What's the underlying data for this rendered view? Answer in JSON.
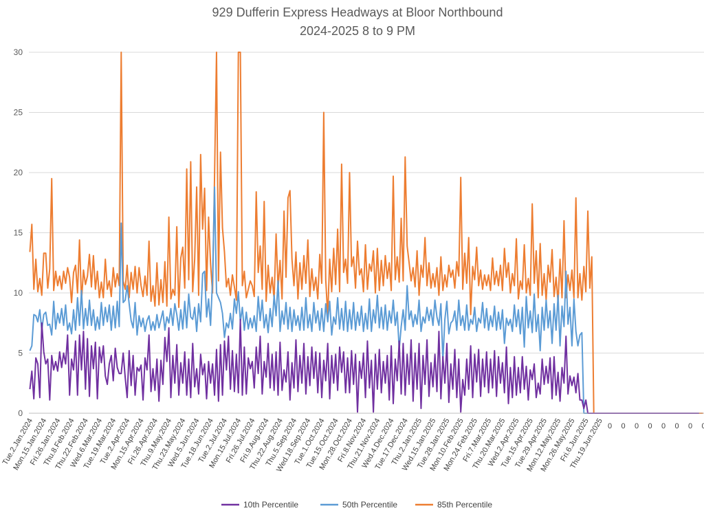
{
  "chart_data": {
    "type": "line",
    "title_line1": "929 Dufferin Express Headways at Bloor Northbound",
    "title_line2": "2024-2025 8 to 9 PM",
    "ylim": [
      0,
      30
    ],
    "y_ticks": [
      0,
      5,
      10,
      15,
      20,
      25,
      30
    ],
    "grid": "horizontal",
    "legend_position": "bottom",
    "date_tick_labels": [
      "Tue.2.Jan.2024",
      "Mon.15.Jan.2024",
      "Fri.26.Jan.2024",
      "Thu.8.Feb.2024",
      "Thu.22.Feb.2024",
      "Wed.6.Mar.2024",
      "Tue.19.Mar.2024",
      "Tue.2.Apr.2024",
      "Mon.15.Apr.2024",
      "Fri.26.Apr.2024",
      "Thu.9.May.2024",
      "Thu.23.May.2024",
      "Wed.5.Jun.2024",
      "Tue.18.Jun.2024",
      "Tue.2.Jul.2024",
      "Mon.15.Jul.2024",
      "Fri.26.Jul.2024",
      "Fri.9.Aug.2024",
      "Thu.22.Aug.2024",
      "Thu.5.Sep.2024",
      "Wed.18.Sep.2024",
      "Tue.1.Oct.2024",
      "Tue.15.Oct.2024",
      "Mon.28.Oct.2024",
      "Fri.8.Nov.2024",
      "Thu.21.Nov.2024",
      "Wed.4.Dec.2024",
      "Tue.17.Dec.2024",
      "Thu.2.Jan.2025",
      "Wed.15.Jan.2025",
      "Tue.28.Jan.2025",
      "Mon.10.Feb.2025",
      "Mon.24.Feb.2025",
      "Fri.7.Mar.2025",
      "Thu.20.Mar.2025",
      "Wed.2.Apr.2025",
      "Tue.15.Apr.2025",
      "Tue.29.Apr.2025",
      "Mon.12.May.2025",
      "Mon.26.May.2025",
      "Fri.6.Jun.2025",
      "Thu.19.Jun.2025"
    ],
    "trailing_tick_labels": [
      "0",
      "0",
      "0",
      "0",
      "0",
      "0",
      "0",
      "0"
    ],
    "series": [
      {
        "name": "85th Percentile",
        "color": "#ED7D31",
        "values": [
          13.4,
          15.7,
          10.3,
          12.8,
          10.1,
          11.2,
          9.8,
          13.3,
          13.3,
          10.4,
          12.0,
          19.5,
          10.2,
          11.8,
          10.6,
          11.4,
          10.3,
          11.8,
          10.8,
          12.1,
          11.3,
          9.2,
          11.7,
          12.3,
          10.0,
          14.4,
          9.3,
          11.9,
          10.7,
          11.4,
          13.2,
          10.5,
          13.1,
          10.3,
          11.8,
          9.6,
          10.9,
          9.6,
          12.8,
          10.3,
          11.0,
          9.7,
          12.1,
          10.5,
          11.6,
          10.6,
          30.0,
          11.0,
          10.3,
          12.3,
          9.6,
          11.7,
          10.3,
          12.2,
          10.0,
          12.1,
          10.6,
          9.7,
          11.4,
          9.8,
          14.3,
          9.3,
          10.6,
          8.9,
          12.5,
          9.0,
          11.1,
          9.2,
          12.6,
          8.9,
          16.3,
          9.5,
          10.3,
          9.8,
          15.5,
          8.8,
          12.9,
          13.8,
          10.4,
          20.3,
          11.1,
          20.9,
          10.1,
          12.8,
          18.8,
          9.8,
          21.5,
          15.3,
          18.7,
          10.2,
          16.3,
          12.4,
          10.0,
          19.6,
          30.0,
          11.0,
          21.7,
          15.4,
          13.4,
          10.5,
          11.2,
          9.8,
          11.5,
          10.5,
          9.4,
          30.0,
          30.0,
          10.6,
          11.8,
          9.6,
          10.3,
          11.0,
          10.6,
          9.7,
          18.4,
          11.7,
          13.9,
          10.3,
          17.6,
          9.3,
          12.3,
          10.0,
          11.3,
          9.5,
          14.9,
          10.4,
          12.7,
          9.5,
          16.8,
          11.3,
          17.9,
          18.5,
          12.8,
          10.6,
          13.4,
          9.5,
          12.5,
          10.3,
          13.1,
          10.8,
          14.4,
          9.7,
          12.0,
          10.2,
          11.3,
          9.5,
          13.2,
          10.8,
          25.0,
          11.1,
          8.1,
          12.8,
          10.1,
          13.7,
          10.7,
          15.3,
          10.1,
          20.7,
          11.7,
          12.8,
          10.8,
          20.0,
          12.2,
          13.0,
          10.4,
          14.3,
          11.5,
          12.0,
          10.1,
          14.0,
          10.3,
          12.4,
          11.8,
          13.5,
          10.0,
          13.7,
          10.2,
          12.7,
          10.6,
          13.1,
          11.2,
          12.5,
          10.2,
          19.7,
          11.1,
          13.0,
          10.9,
          16.2,
          11.0,
          21.3,
          13.9,
          12.5,
          11.0,
          12.1,
          10.5,
          13.5,
          9.8,
          12.3,
          11.3,
          14.6,
          10.6,
          12.5,
          10.4,
          11.6,
          10.5,
          12.1,
          9.8,
          13.0,
          10.2,
          11.5,
          10.5,
          12.3,
          11.3,
          11.9,
          10.4,
          12.6,
          11.4,
          19.6,
          10.3,
          13.3,
          10.8,
          14.6,
          8.2,
          12.2,
          11.1,
          13.8,
          10.6,
          11.9,
          10.3,
          11.5,
          10.6,
          11.5,
          10.2,
          12.9,
          10.7,
          11.8,
          10.6,
          12.3,
          10.2,
          13.7,
          11.3,
          12.5,
          10.0,
          11.6,
          10.6,
          14.5,
          9.5,
          11.0,
          10.3,
          14.0,
          10.0,
          11.2,
          9.8,
          17.4,
          10.8,
          13.5,
          9.6,
          14.1,
          9.8,
          11.6,
          9.4,
          12.3,
          10.9,
          13.6,
          9.7,
          11.3,
          9.2,
          12.8,
          9.6,
          16.0,
          9.6,
          11.5,
          10.2,
          11.9,
          9.6,
          17.9,
          9.6,
          11.6,
          9.4,
          12.2,
          10.1,
          16.8,
          10.4,
          13.0,
          0.0,
          0.0,
          0.0,
          0.0,
          0.0,
          0.0,
          0.0,
          0.0,
          0.0,
          0.0,
          0.0,
          0.0,
          0.0,
          0.0,
          0.0,
          0.0,
          0.0,
          0.0,
          0.0,
          0.0,
          0.0,
          0.0,
          0.0,
          0.0,
          0.0,
          0.0,
          0.0,
          0.0,
          0.0,
          0.0,
          0.0,
          0.0,
          0.0,
          0.0,
          0.0,
          0.0,
          0.0,
          0.0,
          0.0,
          0.0,
          0.0,
          0.0,
          0.0,
          0.0,
          0.0,
          0.0,
          0.0,
          0.0,
          0.0,
          0.0,
          0.0,
          0.0,
          0.0,
          0.0,
          0.0,
          0.0
        ]
      },
      {
        "name": "50th Percentile",
        "color": "#5B9BD5",
        "values": [
          5.2,
          5.6,
          8.2,
          8.1,
          7.6,
          8.6,
          6.9,
          8.2,
          8.4,
          7.3,
          7.4,
          6.5,
          9.3,
          7.0,
          8.3,
          7.5,
          8.7,
          7.3,
          9.0,
          6.9,
          7.5,
          6.6,
          8.6,
          6.9,
          9.6,
          7.3,
          10.2,
          7.0,
          8.7,
          7.3,
          9.4,
          7.3,
          8.6,
          6.9,
          8.0,
          7.0,
          9.2,
          7.3,
          8.8,
          7.6,
          9.0,
          6.9,
          8.9,
          7.1,
          9.3,
          7.2,
          15.8,
          9.2,
          9.4,
          10.6,
          9.1,
          7.7,
          7.1,
          9.2,
          6.5,
          8.1,
          7.2,
          7.9,
          6.8,
          7.7,
          8.1,
          6.9,
          7.6,
          6.9,
          8.2,
          7.1,
          7.8,
          8.5,
          6.9,
          8.0,
          7.5,
          8.7,
          7.3,
          9.1,
          8.2,
          6.9,
          8.6,
          7.0,
          9.3,
          7.1,
          9.9,
          8.0,
          7.8,
          8.8,
          6.8,
          9.1,
          7.6,
          11.6,
          11.8,
          8.0,
          9.5,
          7.3,
          11.1,
          18.8,
          10.0,
          9.6,
          9.2,
          8.3,
          6.3,
          7.5,
          7.1,
          8.3,
          7.0,
          9.5,
          8.3,
          10.1,
          7.6,
          8.8,
          6.9,
          8.4,
          7.0,
          7.9,
          7.1,
          8.1,
          6.8,
          9.7,
          7.7,
          9.4,
          7.1,
          8.2,
          6.7,
          8.7,
          7.2,
          9.8,
          8.1,
          11.0,
          6.8,
          8.5,
          7.4,
          9.2,
          7.0,
          8.8,
          6.8,
          8.6,
          7.3,
          8.1,
          6.9,
          8.8,
          6.9,
          9.6,
          7.1,
          8.2,
          6.8,
          9.2,
          7.5,
          8.5,
          6.9,
          8.7,
          6.8,
          9.1,
          7.6,
          9.3,
          6.5,
          8.0,
          7.4,
          9.6,
          7.0,
          8.7,
          6.9,
          9.3,
          6.8,
          8.6,
          7.0,
          9.2,
          6.9,
          8.4,
          7.3,
          8.9,
          6.8,
          8.3,
          7.0,
          9.5,
          6.8,
          8.6,
          7.5,
          9.8,
          7.1,
          8.8,
          7.0,
          9.0,
          6.9,
          8.5,
          7.5,
          9.4,
          7.3,
          8.4,
          5.3,
          7.2,
          8.6,
          6.9,
          10.6,
          7.8,
          8.5,
          7.2,
          8.2,
          7.4,
          9.4,
          6.8,
          8.0,
          7.5,
          8.8,
          7.7,
          8.6,
          7.3,
          9.4,
          8.0,
          7.3,
          9.1,
          4.4,
          7.8,
          9.3,
          6.6,
          7.5,
          7.7,
          8.5,
          6.9,
          9.4,
          7.3,
          8.1,
          6.9,
          9.0,
          6.9,
          7.8,
          7.4,
          8.8,
          6.8,
          7.9,
          7.5,
          9.2,
          7.1,
          8.7,
          6.9,
          8.1,
          7.2,
          8.9,
          6.9,
          8.4,
          7.0,
          8.6,
          5.8,
          7.9,
          7.3,
          7.8,
          6.8,
          9.0,
          7.2,
          8.6,
          6.6,
          8.8,
          5.5,
          9.7,
          7.1,
          8.5,
          6.7,
          9.9,
          6.8,
          8.2,
          5.2,
          8.8,
          6.9,
          9.4,
          7.1,
          8.5,
          5.8,
          9.1,
          6.9,
          9.8,
          5.6,
          8.9,
          7.2,
          11.8,
          7.4,
          8.8,
          5.6,
          9.5,
          6.8,
          5.6,
          6.5,
          6.7,
          0.0,
          0.0,
          0.0,
          0.0,
          0.0,
          0.0,
          0.0,
          0.0,
          0.0,
          0.0,
          0.0,
          0.0,
          0.0,
          0.0,
          0.0,
          0.0,
          0.0,
          0.0,
          0.0,
          0.0,
          0.0,
          0.0,
          0.0,
          0.0,
          0.0,
          0.0,
          0.0,
          0.0,
          0.0,
          0.0,
          0.0,
          0.0,
          0.0,
          0.0,
          0.0,
          0.0,
          0.0,
          0.0,
          0.0,
          0.0,
          0.0,
          0.0,
          0.0,
          0.0,
          0.0,
          0.0,
          0.0,
          0.0,
          0.0,
          0.0,
          0.0,
          0.0,
          0.0,
          0.0,
          0.0,
          0.0,
          0.0
        ]
      },
      {
        "name": "10th Percentile",
        "color": "#7030A0",
        "values": [
          2.0,
          3.5,
          1.2,
          4.6,
          4.1,
          1.3,
          7.5,
          5.1,
          4.1,
          4.5,
          1.1,
          4.8,
          3.6,
          4.3,
          3.5,
          5.1,
          3.8,
          5.0,
          4.1,
          6.5,
          1.5,
          4.5,
          3.6,
          6.0,
          1.5,
          6.5,
          3.6,
          6.8,
          2.0,
          6.2,
          1.4,
          5.6,
          3.7,
          5.9,
          1.2,
          5.5,
          4.2,
          5.6,
          3.1,
          2.4,
          4.1,
          4.8,
          2.7,
          5.4,
          3.8,
          3.3,
          3.3,
          5.0,
          3.0,
          1.3,
          5.2,
          2.3,
          4.8,
          1.5,
          3.8,
          3.5,
          4.0,
          1.1,
          4.6,
          3.6,
          6.5,
          1.8,
          3.7,
          1.9,
          4.5,
          1.0,
          4.4,
          2.4,
          6.3,
          4.3,
          7.1,
          1.3,
          4.8,
          2.5,
          5.7,
          1.5,
          4.2,
          2.5,
          5.1,
          1.5,
          4.5,
          1.3,
          5.8,
          2.2,
          3.7,
          1.6,
          4.9,
          3.2,
          4.1,
          1.2,
          4.3,
          2.5,
          4.1,
          1.5,
          5.3,
          1.0,
          5.7,
          1.5,
          6.0,
          3.6,
          6.4,
          2.0,
          5.2,
          1.8,
          4.9,
          1.7,
          7.8,
          1.5,
          5.5,
          1.6,
          4.6,
          3.7,
          4.3,
          2.1,
          5.5,
          3.3,
          6.4,
          1.6,
          4.3,
          3.0,
          5.8,
          2.1,
          4.9,
          1.9,
          5.1,
          1.5,
          5.9,
          1.9,
          3.6,
          2.6,
          5.1,
          1.1,
          4.2,
          2.1,
          6.1,
          1.8,
          4.8,
          2.5,
          5.8,
          1.6,
          4.7,
          2.3,
          5.5,
          2.9,
          5.1,
          1.7,
          5.0,
          1.3,
          4.4,
          2.7,
          5.8,
          1.2,
          4.8,
          2.5,
          4.9,
          1.9,
          5.5,
          3.4,
          5.1,
          1.7,
          4.6,
          1.7,
          5.2,
          2.4,
          4.9,
          0.1,
          4.3,
          2.9,
          5.0,
          1.3,
          6.0,
          2.1,
          4.4,
          0.1,
          4.9,
          2.0,
          5.3,
          1.7,
          4.3,
          2.5,
          4.8,
          1.1,
          5.6,
          0.8,
          4.5,
          2.7,
          6.0,
          1.6,
          5.8,
          1.5,
          4.9,
          2.4,
          6.1,
          1.0,
          5.0,
          2.0,
          5.8,
          0.4,
          4.8,
          2.4,
          6.1,
          1.4,
          4.2,
          2.2,
          4.9,
          1.8,
          6.8,
          1.2,
          4.7,
          2.5,
          5.8,
          0.9,
          4.1,
          2.0,
          5.3,
          1.3,
          4.5,
          0.1,
          2.8,
          1.5,
          4.5,
          2.0,
          5.6,
          1.3,
          4.9,
          2.6,
          5.3,
          1.4,
          4.5,
          2.2,
          5.1,
          1.7,
          4.5,
          2.1,
          5.2,
          1.4,
          4.7,
          2.5,
          4.2,
          1.7,
          5.5,
          0.8,
          3.8,
          1.3,
          4.7,
          1.5,
          3.8,
          1.7,
          4.7,
          2.0,
          3.9,
          1.1,
          3.6,
          2.8,
          4.1,
          1.3,
          2.5,
          1.6,
          4.5,
          2.4,
          3.9,
          2.5,
          4.6,
          1.2,
          4.7,
          1.5,
          3.4,
          1.0,
          3.8,
          2.5,
          6.4,
          1.6,
          3.1,
          2.3,
          3.0,
          1.7,
          3.3,
          1.1,
          1.1,
          0.4,
          1.1,
          0.0,
          0.0,
          0.0,
          0.0,
          0.0,
          0.0,
          0.0,
          0.0,
          0.0,
          0.0,
          0.0,
          0.0,
          0.0,
          0.0,
          0.0,
          0.0,
          0.0,
          0.0,
          0.0,
          0.0,
          0.0,
          0.0,
          0.0,
          0.0,
          0.0,
          0.0,
          0.0,
          0.0,
          0.0,
          0.0,
          0.0,
          0.0,
          0.0,
          0.0,
          0.0,
          0.0,
          0.0,
          0.0,
          0.0,
          0.0,
          0.0,
          0.0,
          0.0,
          0.0,
          0.0,
          0.0,
          0.0,
          0.0,
          0.0,
          0.0,
          0.0,
          0.0,
          0.0,
          0.0,
          0.0,
          0.0,
          0.0
        ]
      }
    ],
    "legend": [
      "10th Percentile",
      "50th Percentile",
      "85th Percentile"
    ]
  }
}
